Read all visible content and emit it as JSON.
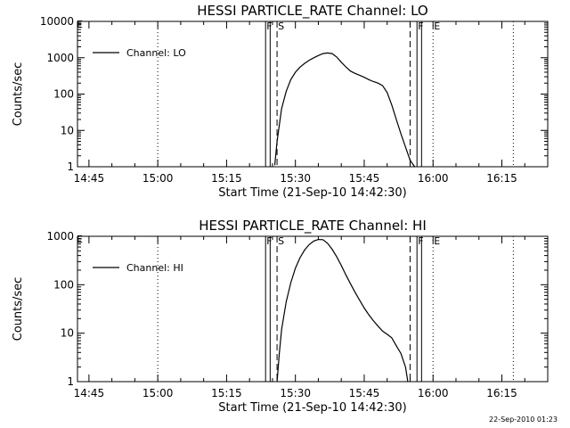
{
  "footer_timestamp": "22-Sep-2010 01:23",
  "chart_data": [
    {
      "type": "line",
      "title": "HESSI PARTICLE_RATE Channel: LO",
      "xlabel": "Start Time (21-Sep-10 14:42:30)",
      "ylabel": "Counts/sec",
      "y_scale": "log",
      "ylim": [
        1,
        10000
      ],
      "y_ticks": [
        1,
        10,
        100,
        1000,
        10000
      ],
      "y_tick_labels": [
        "1",
        "10",
        "100",
        "1000",
        "10000"
      ],
      "xlim": [
        "14:42:30",
        "16:25:00"
      ],
      "x_tick_labels": [
        "14:45",
        "15:00",
        "15:15",
        "15:30",
        "15:45",
        "16:00",
        "16:15"
      ],
      "legend_position": "top-left",
      "series": [
        {
          "name": "Channel: LO",
          "x": [
            "15:25:30",
            "15:26:00",
            "15:27:00",
            "15:28:00",
            "15:29:00",
            "15:30:00",
            "15:31:00",
            "15:32:00",
            "15:33:00",
            "15:34:00",
            "15:35:00",
            "15:36:00",
            "15:37:00",
            "15:38:00",
            "15:39:00",
            "15:40:00",
            "15:41:00",
            "15:42:00",
            "15:43:00",
            "15:44:00",
            "15:45:00",
            "15:46:00",
            "15:47:00",
            "15:48:00",
            "15:49:00",
            "15:50:00",
            "15:51:00",
            "15:52:00",
            "15:53:00",
            "15:54:00",
            "15:55:00",
            "15:56:00"
          ],
          "y": [
            1.1,
            5,
            40,
            120,
            250,
            400,
            550,
            700,
            850,
            1000,
            1150,
            1300,
            1350,
            1300,
            1050,
            750,
            560,
            430,
            370,
            330,
            290,
            250,
            220,
            200,
            170,
            110,
            50,
            20,
            8,
            3.5,
            1.5,
            1
          ]
        }
      ],
      "markers": [
        {
          "label": "F",
          "x": "15:23:30",
          "style": "solid"
        },
        {
          "label": "S",
          "x": "15:26:00",
          "style": "dashed"
        },
        {
          "label": "F",
          "x": "15:56:30",
          "style": "solid"
        },
        {
          "label": "E",
          "x": "16:00:00",
          "style": "dotted"
        }
      ],
      "extra_lines": [
        {
          "x": "15:24:30",
          "style": "solid"
        },
        {
          "x": "15:57:30",
          "style": "solid"
        },
        {
          "x": "15:55:00",
          "style": "dashed"
        },
        {
          "x": "15:00:00",
          "style": "dotted"
        },
        {
          "x": "16:17:30",
          "style": "dotted"
        }
      ],
      "edge_label": "E"
    },
    {
      "type": "line",
      "title": "HESSI PARTICLE_RATE Channel: HI",
      "xlabel": "Start Time (21-Sep-10 14:42:30)",
      "ylabel": "Counts/sec",
      "y_scale": "log",
      "ylim": [
        1,
        1000
      ],
      "y_ticks": [
        1,
        10,
        100,
        1000
      ],
      "y_tick_labels": [
        "1",
        "10",
        "100",
        "1000"
      ],
      "xlim": [
        "14:42:30",
        "16:25:00"
      ],
      "x_tick_labels": [
        "14:45",
        "15:00",
        "15:15",
        "15:30",
        "15:45",
        "16:00",
        "16:15"
      ],
      "legend_position": "top-left",
      "series": [
        {
          "name": "Channel: HI",
          "x": [
            "15:26:00",
            "15:26:30",
            "15:27:00",
            "15:28:00",
            "15:29:00",
            "15:30:00",
            "15:31:00",
            "15:32:00",
            "15:33:00",
            "15:34:00",
            "15:35:00",
            "15:36:00",
            "15:37:00",
            "15:38:00",
            "15:39:00",
            "15:40:00",
            "15:41:00",
            "15:42:00",
            "15:43:00",
            "15:44:00",
            "15:45:00",
            "15:46:00",
            "15:47:00",
            "15:48:00",
            "15:49:00",
            "15:50:00",
            "15:51:00",
            "15:52:00",
            "15:53:00",
            "15:54:00",
            "15:54:30"
          ],
          "y": [
            1,
            4,
            12,
            45,
            110,
            220,
            360,
            520,
            670,
            800,
            860,
            850,
            720,
            540,
            380,
            250,
            160,
            105,
            70,
            48,
            33,
            24,
            18,
            14,
            11,
            9.5,
            8,
            5.5,
            3.8,
            2,
            1
          ]
        }
      ],
      "markers": [
        {
          "label": "F",
          "x": "15:23:30",
          "style": "solid"
        },
        {
          "label": "S",
          "x": "15:26:00",
          "style": "dashed"
        },
        {
          "label": "F",
          "x": "15:56:30",
          "style": "solid"
        },
        {
          "label": "E",
          "x": "16:00:00",
          "style": "dotted"
        }
      ],
      "extra_lines": [
        {
          "x": "15:24:30",
          "style": "solid"
        },
        {
          "x": "15:57:30",
          "style": "solid"
        },
        {
          "x": "15:55:00",
          "style": "dashed"
        },
        {
          "x": "15:00:00",
          "style": "dotted"
        },
        {
          "x": "16:17:30",
          "style": "dotted"
        }
      ],
      "edge_label": "E"
    }
  ]
}
